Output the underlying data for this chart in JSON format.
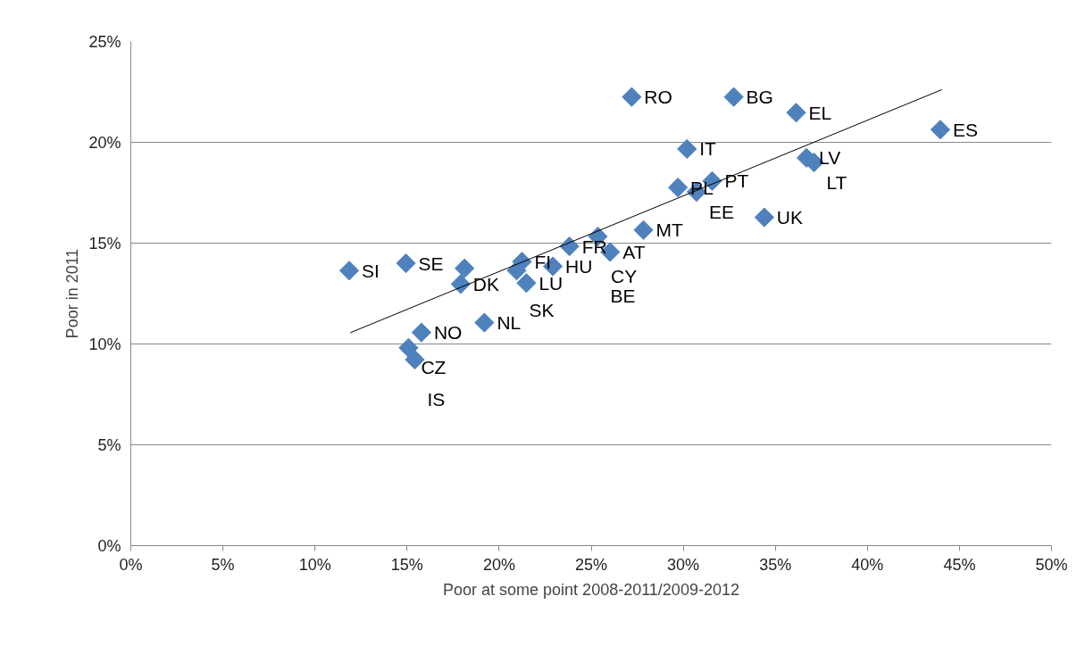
{
  "chart_data": {
    "type": "scatter",
    "xlabel": "Poor at some point 2008-2011/2009-2012",
    "ylabel": "Poor in 2011",
    "xlim": [
      0,
      50
    ],
    "ylim": [
      0,
      25
    ],
    "xticks": [
      {
        "value": 0,
        "label": "0%"
      },
      {
        "value": 5,
        "label": "5%"
      },
      {
        "value": 10,
        "label": "10%"
      },
      {
        "value": 15,
        "label": "15%"
      },
      {
        "value": 20,
        "label": "20%"
      },
      {
        "value": 25,
        "label": "25%"
      },
      {
        "value": 30,
        "label": "30%"
      },
      {
        "value": 35,
        "label": "35%"
      },
      {
        "value": 40,
        "label": "40%"
      },
      {
        "value": 45,
        "label": "45%"
      },
      {
        "value": 50,
        "label": "50%"
      }
    ],
    "yticks": [
      {
        "value": 0,
        "label": "0%"
      },
      {
        "value": 5,
        "label": "5%"
      },
      {
        "value": 10,
        "label": "10%"
      },
      {
        "value": 15,
        "label": "15%"
      },
      {
        "value": 20,
        "label": "20%"
      },
      {
        "value": 25,
        "label": "25%"
      }
    ],
    "grid": "y",
    "series": [
      {
        "color": "#4f81bd",
        "marker": "diamond",
        "x": [
          11.86,
          14.94,
          18.12,
          17.91,
          21.24,
          20.95,
          21.48,
          22.92,
          19.2,
          15.78,
          15.08,
          15.42,
          23.82,
          25.36,
          26.03,
          27.84,
          27.2,
          32.74,
          30.2,
          29.71,
          30.72,
          31.57,
          34.4,
          36.13,
          43.96,
          36.69,
          37.1
        ],
        "values": [
          13.64,
          14.0,
          13.75,
          12.97,
          14.08,
          13.64,
          13.02,
          13.85,
          11.06,
          10.57,
          9.81,
          9.22,
          14.84,
          15.33,
          14.56,
          15.65,
          22.25,
          22.25,
          19.67,
          17.76,
          17.54,
          18.08,
          16.28,
          21.47,
          20.63,
          19.23,
          19.0
        ]
      },
      {
        "type": "line",
        "color": "#000000",
        "x": [
          11.92,
          44.04
        ],
        "values": [
          10.56,
          22.61
        ]
      }
    ],
    "annotations": [
      {
        "text": "RO",
        "x": 27.2,
        "y": 22.25
      },
      {
        "text": "BG",
        "x": 32.74,
        "y": 22.25
      },
      {
        "text": "EL",
        "x": 36.13,
        "y": 21.47
      },
      {
        "text": "ES",
        "x": 43.96,
        "y": 20.63
      },
      {
        "text": "IT",
        "x": 30.2,
        "y": 19.67
      },
      {
        "text": "LV",
        "x": 36.69,
        "y": 19.23
      },
      {
        "text": "LT",
        "x": 37.1,
        "y": 19.0
      },
      {
        "text": "PL",
        "x": 29.71,
        "y": 17.76
      },
      {
        "text": "PT",
        "x": 31.57,
        "y": 18.08
      },
      {
        "text": "EE",
        "x": 30.72,
        "y": 17.54
      },
      {
        "text": "UK",
        "x": 34.4,
        "y": 16.28
      },
      {
        "text": "MT",
        "x": 27.84,
        "y": 15.65
      },
      {
        "text": "AT",
        "x": 26.03,
        "y": 14.56
      },
      {
        "text": "CY",
        "x": 25.39,
        "y": 15.33
      },
      {
        "text": "BE",
        "x": 25.36,
        "y": 15.33
      },
      {
        "text": "FR",
        "x": 23.82,
        "y": 14.84
      },
      {
        "text": "HU",
        "x": 22.92,
        "y": 13.85
      },
      {
        "text": "FI",
        "x": 21.24,
        "y": 14.08
      },
      {
        "text": "LU",
        "x": 21.48,
        "y": 13.02
      },
      {
        "text": "SK",
        "x": 20.95,
        "y": 13.64
      },
      {
        "text": "DK",
        "x": 17.91,
        "y": 12.97
      },
      {
        "text": "NL",
        "x": 19.2,
        "y": 11.06
      },
      {
        "text": "NO",
        "x": 15.78,
        "y": 10.57
      },
      {
        "text": "CZ",
        "x": 15.08,
        "y": 9.81
      },
      {
        "text": "IS",
        "x": 15.42,
        "y": 9.22
      },
      {
        "text": "SI",
        "x": 11.86,
        "y": 13.64
      },
      {
        "text": "SE",
        "x": 14.94,
        "y": 14.0
      }
    ]
  }
}
